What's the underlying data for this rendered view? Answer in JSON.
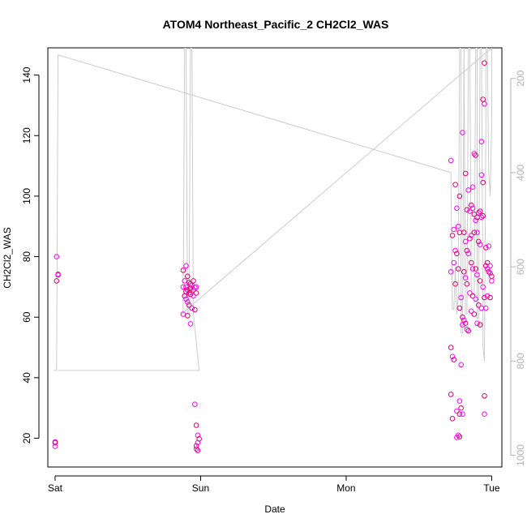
{
  "chart_data": {
    "type": "scatter",
    "title": "ATOM4 Northeast_Pacific_2 CH2Cl2_WAS",
    "xlabel": "Date",
    "ylabel": "CH2Cl2_WAS",
    "x_ticks": [
      "Sat",
      "Sun",
      "Mon",
      "Tue"
    ],
    "y_ticks": [
      20,
      40,
      60,
      80,
      100,
      120,
      140
    ],
    "y_right_ticks": [
      200,
      400,
      600,
      800,
      1000
    ],
    "xlim_days": [
      -0.05,
      3.07
    ],
    "ylim": [
      10.5,
      149
    ],
    "y_right_lim": [
      1025,
      135
    ],
    "x_axis_unit": "days after Sat 00:00",
    "colors": {
      "points": "#ff00ff",
      "points_dark": "#e0006a",
      "line": "#cccccc",
      "axis": "#000000",
      "right_axis": "#b3b3b3"
    },
    "series": [
      {
        "kind": "points",
        "points": [
          [
            0.01,
            80
          ],
          [
            0.02,
            74
          ],
          [
            0.02,
            74.2
          ],
          [
            0.01,
            72
          ],
          [
            0.0,
            18.8
          ],
          [
            0.0,
            18.5
          ],
          [
            0.0,
            17.3
          ],
          [
            0.88,
            75.5
          ],
          [
            0.9,
            77
          ],
          [
            0.91,
            73.5
          ],
          [
            0.89,
            72
          ],
          [
            0.92,
            71.5
          ],
          [
            0.9,
            70
          ],
          [
            0.93,
            71
          ],
          [
            0.94,
            70.5
          ],
          [
            0.95,
            69
          ],
          [
            0.96,
            69.8
          ],
          [
            0.91,
            69
          ],
          [
            0.92,
            68
          ],
          [
            0.89,
            67
          ],
          [
            0.9,
            66
          ],
          [
            0.93,
            67.5
          ],
          [
            0.95,
            67
          ],
          [
            0.97,
            68
          ],
          [
            0.88,
            70
          ],
          [
            0.9,
            68.5
          ],
          [
            0.91,
            65
          ],
          [
            0.92,
            64
          ],
          [
            0.94,
            63
          ],
          [
            0.96,
            62.5
          ],
          [
            0.88,
            61
          ],
          [
            0.91,
            60.5
          ],
          [
            0.93,
            57.8
          ],
          [
            0.95,
            72
          ],
          [
            0.97,
            70
          ],
          [
            0.93,
            69.5
          ],
          [
            0.96,
            31.2
          ],
          [
            0.97,
            24.3
          ],
          [
            0.98,
            21
          ],
          [
            0.99,
            19.8
          ],
          [
            0.98,
            18.5
          ],
          [
            0.97,
            17.5
          ],
          [
            0.97,
            16.5
          ],
          [
            0.98,
            16
          ],
          [
            2.72,
            111.8
          ],
          [
            2.75,
            103.8
          ],
          [
            2.76,
            96
          ],
          [
            2.78,
            100
          ],
          [
            2.77,
            90
          ],
          [
            2.78,
            88
          ],
          [
            2.74,
            89
          ],
          [
            2.73,
            87
          ],
          [
            2.75,
            82
          ],
          [
            2.76,
            81
          ],
          [
            2.74,
            78
          ],
          [
            2.77,
            76
          ],
          [
            2.72,
            75
          ],
          [
            2.75,
            71
          ],
          [
            2.79,
            66.5
          ],
          [
            2.78,
            63
          ],
          [
            2.8,
            121
          ],
          [
            2.82,
            107.5
          ],
          [
            2.84,
            102
          ],
          [
            2.83,
            95.5
          ],
          [
            2.85,
            95
          ],
          [
            2.86,
            97
          ],
          [
            2.87,
            96
          ],
          [
            2.88,
            94
          ],
          [
            2.89,
            92
          ],
          [
            2.9,
            93
          ],
          [
            2.91,
            94.5
          ],
          [
            2.92,
            95
          ],
          [
            2.93,
            93
          ],
          [
            2.94,
            93.5
          ],
          [
            2.93,
            118
          ],
          [
            2.94,
            132
          ],
          [
            2.95,
            130.5
          ],
          [
            2.95,
            144
          ],
          [
            2.93,
            107
          ],
          [
            2.94,
            104.5
          ],
          [
            2.88,
            114
          ],
          [
            2.89,
            113.5
          ],
          [
            2.87,
            103
          ],
          [
            2.85,
            86
          ],
          [
            2.86,
            87
          ],
          [
            2.88,
            88
          ],
          [
            2.9,
            88
          ],
          [
            2.91,
            85
          ],
          [
            2.92,
            84
          ],
          [
            2.81,
            88
          ],
          [
            2.82,
            85
          ],
          [
            2.83,
            82
          ],
          [
            2.84,
            81
          ],
          [
            2.86,
            78
          ],
          [
            2.87,
            76
          ],
          [
            2.89,
            76
          ],
          [
            2.9,
            74
          ],
          [
            2.92,
            72
          ],
          [
            2.94,
            70
          ],
          [
            2.96,
            77
          ],
          [
            2.97,
            76
          ],
          [
            2.98,
            75
          ],
          [
            2.99,
            74.5
          ],
          [
            3.0,
            73.5
          ],
          [
            3.0,
            72
          ],
          [
            2.96,
            83
          ],
          [
            2.98,
            83.5
          ],
          [
            2.97,
            78
          ],
          [
            2.99,
            77
          ],
          [
            2.81,
            75
          ],
          [
            2.82,
            73
          ],
          [
            2.83,
            71
          ],
          [
            2.85,
            68
          ],
          [
            2.87,
            67
          ],
          [
            2.89,
            66
          ],
          [
            2.91,
            64
          ],
          [
            2.93,
            63
          ],
          [
            2.95,
            66.5
          ],
          [
            2.97,
            67
          ],
          [
            2.99,
            66.5
          ],
          [
            2.96,
            63
          ],
          [
            2.8,
            60
          ],
          [
            2.81,
            59
          ],
          [
            2.82,
            58
          ],
          [
            2.83,
            56
          ],
          [
            2.84,
            55.5
          ],
          [
            2.86,
            62
          ],
          [
            2.88,
            61
          ],
          [
            2.9,
            58
          ],
          [
            2.92,
            57.5
          ],
          [
            2.8,
            57.5
          ],
          [
            2.72,
            50
          ],
          [
            2.73,
            47
          ],
          [
            2.74,
            46
          ],
          [
            2.79,
            44.3
          ],
          [
            2.72,
            34.5
          ],
          [
            2.78,
            32.3
          ],
          [
            2.79,
            30
          ],
          [
            2.76,
            29
          ],
          [
            2.78,
            28
          ],
          [
            2.8,
            28
          ],
          [
            2.73,
            26.5
          ],
          [
            2.77,
            21
          ],
          [
            2.78,
            20.5
          ],
          [
            2.76,
            20.3
          ],
          [
            2.95,
            34
          ],
          [
            2.95,
            28
          ]
        ]
      },
      {
        "kind": "line",
        "axis": "right",
        "points": [
          [
            -0.01,
            820
          ],
          [
            0.01,
            820
          ],
          [
            0.02,
            150
          ],
          [
            2.72,
            400
          ],
          [
            2.72,
            420
          ],
          [
            2.73,
            690
          ],
          [
            2.74,
            690
          ],
          [
            2.75,
            600
          ],
          [
            2.76,
            700
          ],
          [
            2.77,
            660
          ],
          [
            2.78,
            135
          ],
          [
            2.79,
            135
          ],
          [
            2.79,
            740
          ],
          [
            2.8,
            740
          ],
          [
            2.81,
            135
          ],
          [
            2.81,
            135
          ],
          [
            2.82,
            700
          ],
          [
            2.83,
            700
          ],
          [
            2.84,
            135
          ],
          [
            2.85,
            135
          ],
          [
            2.86,
            660
          ],
          [
            2.88,
            660
          ],
          [
            2.89,
            135
          ],
          [
            2.9,
            135
          ],
          [
            2.9,
            710
          ],
          [
            2.91,
            710
          ],
          [
            2.92,
            135
          ],
          [
            2.93,
            135
          ],
          [
            2.94,
            690
          ],
          [
            2.94,
            770
          ],
          [
            2.95,
            800
          ],
          [
            2.96,
            300
          ],
          [
            2.96,
            135
          ],
          [
            2.97,
            135
          ],
          [
            2.98,
            400
          ],
          [
            2.99,
            450
          ],
          [
            3.0,
            300
          ],
          [
            3.0,
            135
          ],
          [
            0.87,
            700
          ],
          [
            0.88,
            700
          ],
          [
            0.89,
            135
          ],
          [
            0.9,
            135
          ],
          [
            0.91,
            700
          ],
          [
            0.92,
            700
          ],
          [
            0.93,
            135
          ],
          [
            0.94,
            135
          ],
          [
            0.95,
            700
          ],
          [
            0.97,
            760
          ],
          [
            0.98,
            790
          ],
          [
            0.99,
            820
          ],
          [
            0.02,
            820
          ]
        ]
      }
    ]
  }
}
